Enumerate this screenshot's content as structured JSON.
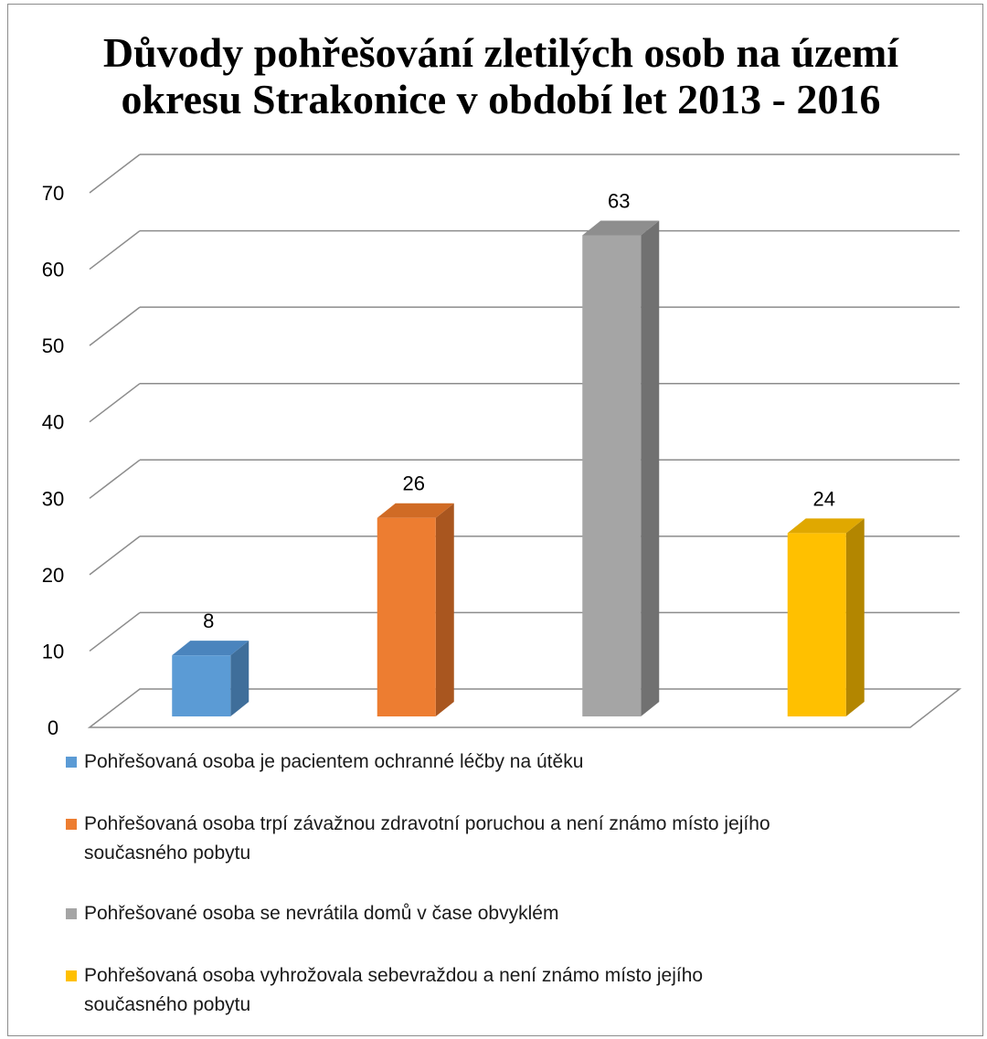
{
  "chart_data": {
    "type": "bar",
    "title_lines": [
      "Důvody pohřešování zletilých osob na území",
      "okresu  Strakonice v období let 2013 - 2016"
    ],
    "categories": [
      "Pohřešovaná osoba je pacientem ochranné léčby na útěku",
      "Pohřešovaná osoba trpí  závažnou zdravotní poruchou a není známo místo jejího současného pobytu",
      "Pohřešované osoba se nevrátila domů  v čase obvyklém",
      "Pohřešovaná osoba vyhrožovala sebevraždou a není známo místo jejího současného pobytu"
    ],
    "values": [
      8,
      26,
      63,
      24
    ],
    "data_labels": [
      "8",
      "26",
      "63",
      "24"
    ],
    "colors": [
      "#5b9bd5",
      "#ed7d31",
      "#a5a5a5",
      "#ffc000"
    ],
    "side_colors": [
      "#3f6e9a",
      "#a9561f",
      "#717171",
      "#b38600"
    ],
    "top_colors": [
      "#4a84bd",
      "#d06b25",
      "#8e8e8e",
      "#e0a800"
    ],
    "ylim": [
      0,
      70
    ],
    "yticks": [
      "0",
      "10",
      "20",
      "30",
      "40",
      "50",
      "60",
      "70"
    ],
    "grid": true,
    "legend_position": "bottom",
    "legend": [
      {
        "line1": "Pohřešovaná osoba je pacientem ochranné léčby na útěku",
        "line2": ""
      },
      {
        "line1": "Pohřešovaná osoba trpí  závažnou zdravotní poruchou a není známo místo jejího",
        "line2": "současného pobytu"
      },
      {
        "line1": "Pohřešované osoba se nevrátila domů  v čase obvyklém",
        "line2": ""
      },
      {
        "line1": "Pohřešovaná osoba vyhrožovala sebevraždou a není známo místo jejího",
        "line2": "současného pobytu"
      }
    ]
  }
}
